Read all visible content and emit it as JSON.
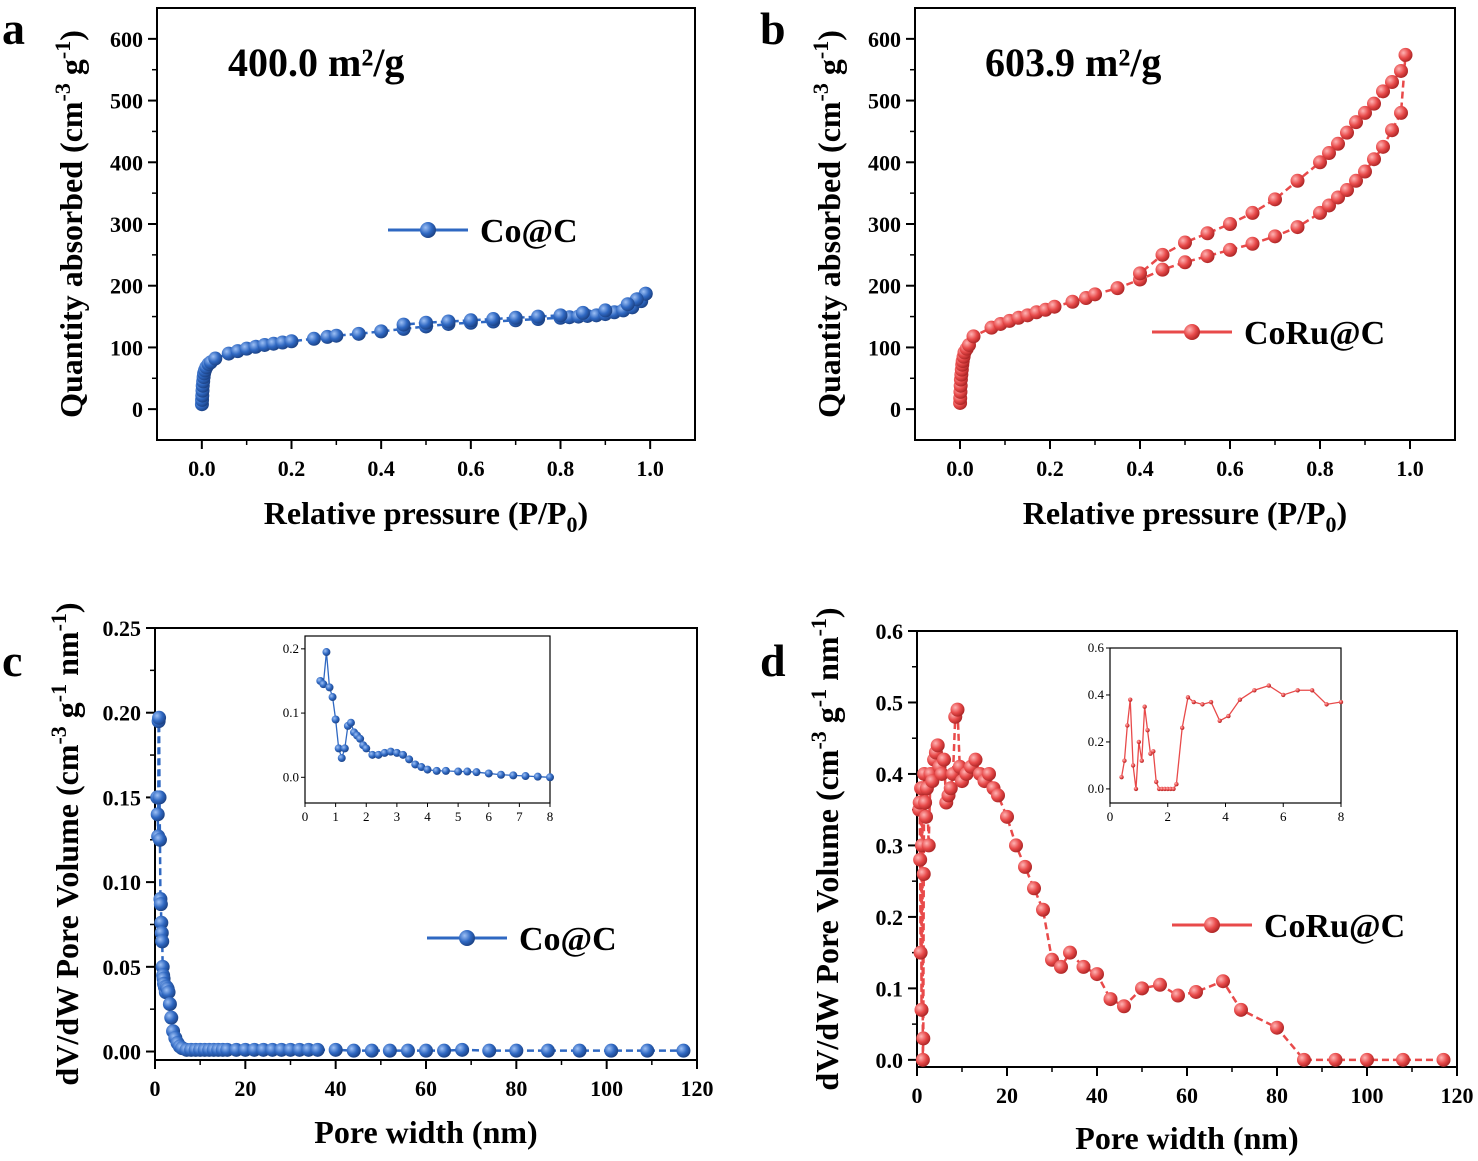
{
  "colors": {
    "blue": "#2f68c2",
    "red": "#e84a4a",
    "axis": "#000000"
  },
  "panels": [
    {
      "letter": "a"
    },
    {
      "letter": "b"
    },
    {
      "letter": "c"
    },
    {
      "letter": "d"
    }
  ],
  "chart_data": [
    {
      "type": "scatter",
      "panel": "a",
      "annotation": "400.0 m²/g",
      "xlabel": "Relative pressure (P/P0)",
      "ylabel": "Quantity absorbed (cm-3 g-1)",
      "xlim": [
        -0.1,
        1.1
      ],
      "ylim": [
        -50,
        650
      ],
      "xticks": [
        0.0,
        0.2,
        0.4,
        0.6,
        0.8,
        1.0
      ],
      "xtick_labels": [
        "0.0",
        "0.2",
        "0.4",
        "0.6",
        "0.8",
        "1.0"
      ],
      "yticks": [
        0,
        100,
        200,
        300,
        400,
        500,
        600
      ],
      "ytick_labels": [
        "0",
        "100",
        "200",
        "300",
        "400",
        "500",
        "600"
      ],
      "legend": "right-center",
      "series": [
        {
          "name": "Co@C",
          "color": "#2f68c2",
          "x": [
            0.0002,
            0.0005,
            0.001,
            0.0015,
            0.002,
            0.003,
            0.004,
            0.005,
            0.007,
            0.01,
            0.015,
            0.02,
            0.03,
            0.06,
            0.08,
            0.1,
            0.12,
            0.14,
            0.16,
            0.18,
            0.2,
            0.25,
            0.28,
            0.3,
            0.35,
            0.4,
            0.45,
            0.5,
            0.55,
            0.6,
            0.65,
            0.7,
            0.75,
            0.8,
            0.82,
            0.84,
            0.86,
            0.88,
            0.9,
            0.92,
            0.94,
            0.96,
            0.98,
            0.99,
            0.99,
            0.97,
            0.95,
            0.9,
            0.85,
            0.8,
            0.75,
            0.7,
            0.65,
            0.6,
            0.55,
            0.5,
            0.45
          ],
          "y": [
            8,
            15,
            22,
            30,
            38,
            45,
            52,
            58,
            63,
            68,
            73,
            76,
            82,
            90,
            94,
            98,
            101,
            104,
            106,
            108,
            110,
            114,
            117,
            119,
            122,
            126,
            130,
            134,
            138,
            140,
            142,
            144,
            146,
            148,
            149,
            150,
            151,
            152,
            154,
            157,
            160,
            165,
            175,
            187,
            187,
            178,
            170,
            160,
            156,
            152,
            150,
            148,
            146,
            144,
            142,
            140,
            137
          ]
        }
      ]
    },
    {
      "type": "scatter",
      "panel": "b",
      "annotation": "603.9 m²/g",
      "xlabel": "Relative pressure (P/P0)",
      "ylabel": "Quantity absorbed (cm-3 g-1)",
      "xlim": [
        -0.1,
        1.1
      ],
      "ylim": [
        -50,
        650
      ],
      "xticks": [
        0.0,
        0.2,
        0.4,
        0.6,
        0.8,
        1.0
      ],
      "xtick_labels": [
        "0.0",
        "0.2",
        "0.4",
        "0.6",
        "0.8",
        "1.0"
      ],
      "yticks": [
        0,
        100,
        200,
        300,
        400,
        500,
        600
      ],
      "ytick_labels": [
        "0",
        "100",
        "200",
        "300",
        "400",
        "500",
        "600"
      ],
      "legend": "right-center",
      "series": [
        {
          "name": "CoRu@C",
          "color": "#e84a4a",
          "x": [
            0.0002,
            0.0005,
            0.001,
            0.0015,
            0.002,
            0.003,
            0.004,
            0.005,
            0.006,
            0.008,
            0.01,
            0.015,
            0.02,
            0.03,
            0.07,
            0.09,
            0.11,
            0.13,
            0.15,
            0.17,
            0.19,
            0.21,
            0.25,
            0.28,
            0.3,
            0.35,
            0.4,
            0.45,
            0.5,
            0.55,
            0.6,
            0.65,
            0.7,
            0.75,
            0.8,
            0.82,
            0.84,
            0.86,
            0.88,
            0.9,
            0.92,
            0.94,
            0.96,
            0.98,
            0.99,
            0.98,
            0.96,
            0.94,
            0.92,
            0.9,
            0.88,
            0.86,
            0.84,
            0.82,
            0.8,
            0.75,
            0.7,
            0.65,
            0.6,
            0.55,
            0.5,
            0.45,
            0.4
          ],
          "y": [
            10,
            18,
            28,
            38,
            48,
            56,
            64,
            72,
            78,
            85,
            92,
            98,
            104,
            118,
            132,
            138,
            143,
            148,
            152,
            157,
            161,
            166,
            174,
            180,
            186,
            196,
            210,
            226,
            238,
            248,
            258,
            268,
            280,
            295,
            318,
            330,
            343,
            355,
            370,
            385,
            405,
            425,
            452,
            480,
            574,
            548,
            530,
            515,
            495,
            480,
            465,
            448,
            430,
            415,
            400,
            370,
            340,
            318,
            300,
            285,
            270,
            250,
            220
          ]
        }
      ]
    },
    {
      "type": "scatter",
      "panel": "c",
      "xlabel": "Pore width (nm)",
      "ylabel": "dV/dW Pore Volume (cm-3 g-1 nm-1)",
      "xlim": [
        0,
        120
      ],
      "ylim": [
        -0.005,
        0.25
      ],
      "xticks": [
        0,
        20,
        40,
        60,
        80,
        100,
        120
      ],
      "xtick_labels": [
        "0",
        "20",
        "40",
        "60",
        "80",
        "100",
        "120"
      ],
      "yticks": [
        0.0,
        0.05,
        0.1,
        0.15,
        0.2,
        0.25
      ],
      "ytick_labels": [
        "0.00",
        "0.05",
        "0.10",
        "0.15",
        "0.20",
        "0.25"
      ],
      "legend": "right-center",
      "series": [
        {
          "name": "Co@C",
          "color": "#2f68c2",
          "x": [
            0.5,
            0.6,
            0.7,
            0.8,
            0.9,
            1.0,
            1.1,
            1.2,
            1.3,
            1.4,
            1.5,
            1.6,
            1.7,
            1.8,
            1.9,
            2.0,
            2.2,
            2.4,
            2.6,
            2.8,
            3.0,
            3.3,
            3.6,
            4.0,
            4.5,
            5.0,
            5.5,
            6.0,
            7.0,
            8.0,
            9.0,
            10,
            11,
            12,
            13,
            14,
            15,
            16,
            18,
            20,
            22,
            24,
            26,
            28,
            30,
            32,
            34,
            36,
            40,
            44,
            48,
            52,
            56,
            60,
            64,
            68,
            74,
            80,
            87,
            94,
            101,
            109,
            117
          ],
          "y": [
            0.15,
            0.14,
            0.127,
            0.195,
            0.197,
            0.15,
            0.125,
            0.09,
            0.087,
            0.076,
            0.07,
            0.065,
            0.05,
            0.045,
            0.043,
            0.04,
            0.038,
            0.035,
            0.038,
            0.037,
            0.035,
            0.028,
            0.02,
            0.012,
            0.008,
            0.005,
            0.003,
            0.002,
            0.001,
            0.001,
            0.001,
            0.001,
            0.001,
            0.001,
            0.001,
            0.001,
            0.001,
            0.001,
            0.001,
            0.001,
            0.001,
            0.001,
            0.001,
            0.001,
            0.001,
            0.001,
            0.001,
            0.001,
            0.001,
            0.0005,
            0.0005,
            0.0005,
            0.0005,
            0.0005,
            0.0005,
            0.001,
            0.0005,
            0.0005,
            0.0005,
            0.0005,
            0.0005,
            0.0005,
            0.0005
          ]
        }
      ],
      "inset": {
        "xlim": [
          0,
          8
        ],
        "ylim": [
          -0.04,
          0.22
        ],
        "xticks": [
          0,
          1,
          2,
          3,
          4,
          5,
          6,
          7,
          8
        ],
        "xtick_labels": [
          "0",
          "1",
          "2",
          "3",
          "4",
          "5",
          "6",
          "7",
          "8"
        ],
        "yticks": [
          0.0,
          0.1,
          0.2
        ],
        "ytick_labels": [
          "0.0",
          "0.1",
          "0.2"
        ],
        "x": [
          0.5,
          0.6,
          0.7,
          0.8,
          0.9,
          1.0,
          1.1,
          1.2,
          1.3,
          1.4,
          1.5,
          1.6,
          1.7,
          1.8,
          1.9,
          2.0,
          2.2,
          2.4,
          2.6,
          2.8,
          3.0,
          3.2,
          3.4,
          3.6,
          3.8,
          4.0,
          4.3,
          4.6,
          5.0,
          5.3,
          5.6,
          6.0,
          6.4,
          6.8,
          7.2,
          7.6,
          8.0
        ],
        "y": [
          0.15,
          0.145,
          0.195,
          0.14,
          0.125,
          0.09,
          0.045,
          0.03,
          0.045,
          0.08,
          0.085,
          0.07,
          0.065,
          0.06,
          0.05,
          0.045,
          0.035,
          0.035,
          0.038,
          0.04,
          0.038,
          0.035,
          0.028,
          0.02,
          0.016,
          0.012,
          0.01,
          0.01,
          0.009,
          0.009,
          0.008,
          0.006,
          0.004,
          0.003,
          0.002,
          0.001,
          0.0
        ]
      }
    },
    {
      "type": "scatter",
      "panel": "d",
      "xlabel": "Pore width (nm)",
      "ylabel": "dV/dW Pore Volume (cm-3 g-1 nm-1)",
      "xlim": [
        0,
        120
      ],
      "ylim": [
        -0.01,
        0.6
      ],
      "xticks": [
        0,
        20,
        40,
        60,
        80,
        100,
        120
      ],
      "xtick_labels": [
        "0",
        "20",
        "40",
        "60",
        "80",
        "100",
        "120"
      ],
      "yticks": [
        0.0,
        0.1,
        0.2,
        0.3,
        0.4,
        0.5,
        0.6
      ],
      "ytick_labels": [
        "0.0",
        "0.1",
        "0.2",
        "0.3",
        "0.4",
        "0.5",
        "0.6"
      ],
      "legend": "right-center",
      "series": [
        {
          "name": "CoRu@C",
          "color": "#e84a4a",
          "x": [
            0.5,
            0.6,
            0.7,
            0.8,
            0.9,
            1.0,
            1.1,
            1.2,
            1.3,
            1.4,
            1.5,
            1.6,
            1.8,
            2.0,
            2.2,
            2.6,
            3.0,
            3.4,
            3.8,
            4.2,
            4.6,
            5.0,
            5.5,
            6.0,
            6.5,
            7.0,
            7.5,
            8.0,
            8.5,
            9.0,
            9.5,
            10,
            11,
            12,
            13,
            14,
            15,
            16,
            17,
            18,
            20,
            22,
            24,
            26,
            28,
            30,
            32,
            34,
            37,
            40,
            43,
            46,
            50,
            54,
            58,
            62,
            68,
            72,
            80,
            86,
            93,
            100,
            108,
            117
          ],
          "y": [
            0.35,
            0.36,
            0.28,
            0.15,
            0.38,
            0.07,
            0.3,
            0.38,
            0.0,
            0.03,
            0.26,
            0.4,
            0.36,
            0.34,
            0.38,
            0.3,
            0.4,
            0.39,
            0.42,
            0.43,
            0.44,
            0.41,
            0.4,
            0.42,
            0.36,
            0.37,
            0.38,
            0.4,
            0.48,
            0.49,
            0.41,
            0.39,
            0.4,
            0.41,
            0.42,
            0.4,
            0.39,
            0.4,
            0.38,
            0.37,
            0.34,
            0.3,
            0.27,
            0.24,
            0.21,
            0.14,
            0.13,
            0.15,
            0.13,
            0.12,
            0.085,
            0.075,
            0.1,
            0.105,
            0.09,
            0.095,
            0.11,
            0.07,
            0.045,
            0.0,
            0.0,
            0.0,
            0.0,
            0.0
          ]
        }
      ],
      "inset": {
        "xlim": [
          0,
          8
        ],
        "ylim": [
          -0.06,
          0.6
        ],
        "xticks": [
          0,
          2,
          4,
          6,
          8
        ],
        "xtick_labels": [
          "0",
          "2",
          "4",
          "6",
          "8"
        ],
        "yticks": [
          0.0,
          0.2,
          0.4,
          0.6
        ],
        "ytick_labels": [
          "0.0",
          "0.2",
          "0.4",
          "0.6"
        ],
        "x": [
          0.4,
          0.5,
          0.6,
          0.7,
          0.8,
          0.9,
          1.0,
          1.1,
          1.2,
          1.3,
          1.4,
          1.5,
          1.6,
          1.7,
          1.8,
          1.9,
          2.0,
          2.1,
          2.2,
          2.3,
          2.5,
          2.7,
          2.9,
          3.2,
          3.5,
          3.8,
          4.1,
          4.5,
          5.0,
          5.5,
          6.0,
          6.5,
          7.0,
          7.5,
          8.0
        ],
        "y": [
          0.05,
          0.12,
          0.27,
          0.38,
          0.1,
          0.0,
          0.2,
          0.12,
          0.35,
          0.25,
          0.15,
          0.16,
          0.03,
          0.0,
          0.0,
          0.0,
          0.0,
          0.0,
          0.0,
          0.02,
          0.26,
          0.39,
          0.37,
          0.36,
          0.37,
          0.29,
          0.31,
          0.38,
          0.42,
          0.44,
          0.4,
          0.42,
          0.42,
          0.36,
          0.37
        ]
      }
    }
  ]
}
